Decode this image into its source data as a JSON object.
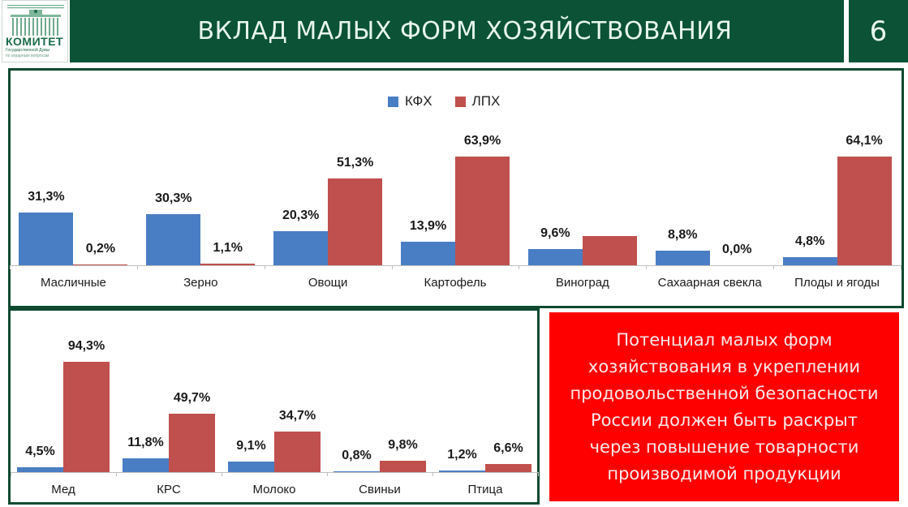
{
  "logo": {
    "title": "КОМИТЕТ",
    "line1": "Государственной Думы",
    "line2": "по аграрным вопросам"
  },
  "header": {
    "title": "ВКЛАД МАЛЫХ ФОРМ ХОЗЯЙСТВОВАНИЯ",
    "page_number": "6"
  },
  "colors": {
    "header_bg": "#0b5237",
    "kfh": "#4a7ec4",
    "lph": "#c0504d",
    "callout_bg": "#fe0000",
    "frame_border": "#0e4a30"
  },
  "legend": [
    {
      "label": "КФХ",
      "color": "#4a7ec4"
    },
    {
      "label": "ЛПХ",
      "color": "#c0504d"
    }
  ],
  "callout": {
    "lines": [
      "Потенциал малых форм",
      "хозяйствования в укреплении",
      "продовольственной безопасности",
      "России должен быть раскрыт",
      "через повышение товарности",
      "производимой продукции"
    ]
  },
  "chart_data": [
    {
      "type": "bar",
      "title": "",
      "xlabel": "",
      "ylabel": "",
      "grid": false,
      "legend_position": "top",
      "categories": [
        "Масличные",
        "Зерно",
        "Овощи",
        "Картофель",
        "Виноград",
        "Сахаарная свекла",
        "Плоды и ягоды"
      ],
      "series": [
        {
          "name": "КФХ",
          "values": [
            31.3,
            30.3,
            20.3,
            13.9,
            9.6,
            8.8,
            4.8
          ],
          "labels": [
            "31,3%",
            "30,3%",
            "20,3%",
            "13,9%",
            "9,6%",
            "8,8%",
            "4,8%"
          ]
        },
        {
          "name": "ЛПХ",
          "values": [
            0.2,
            1.1,
            51.3,
            63.9,
            17.0,
            0.0,
            64.1
          ],
          "labels": [
            "0,2%",
            "1,1%",
            "51,3%",
            "63,9%",
            "",
            "0,0%",
            "64,1%"
          ]
        }
      ],
      "ylim": [
        0,
        70
      ]
    },
    {
      "type": "bar",
      "title": "",
      "xlabel": "",
      "ylabel": "",
      "grid": false,
      "categories": [
        "Мед",
        "КРС",
        "Молоко",
        "Свиньи",
        "Птица"
      ],
      "series": [
        {
          "name": "КФХ",
          "values": [
            4.5,
            11.8,
            9.1,
            0.8,
            1.2
          ],
          "labels": [
            "4,5%",
            "11,8%",
            "9,1%",
            "0,8%",
            "1,2%"
          ]
        },
        {
          "name": "ЛПХ",
          "values": [
            94.3,
            49.7,
            34.7,
            9.8,
            6.6
          ],
          "labels": [
            "94,3%",
            "49,7%",
            "34,7%",
            "9,8%",
            "6,6%"
          ]
        }
      ],
      "ylim": [
        0,
        100
      ]
    }
  ]
}
